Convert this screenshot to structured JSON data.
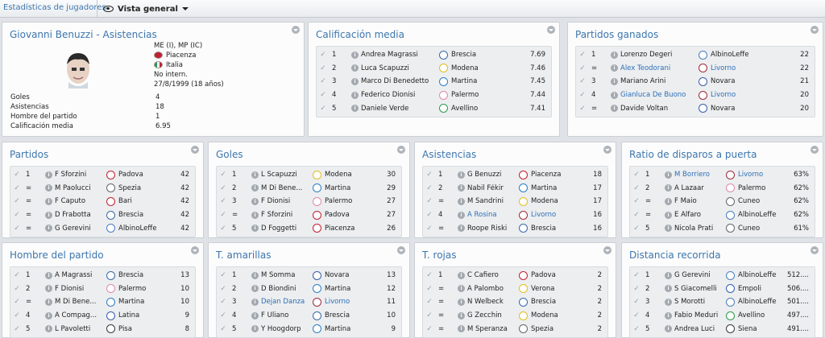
{
  "header": {
    "title": "Estadísticas de jugadores",
    "view_label": "Vista general"
  },
  "profile": {
    "title": "Giovanni Benuzzi - Asistencias",
    "position": "ME (I), MP (IC)",
    "club": "Piacenza",
    "nation": "Italia",
    "international": "No intern.",
    "dob": "27/8/1999 (18 años)",
    "stats": [
      {
        "label": "Goles",
        "value": "4"
      },
      {
        "label": "Asistencias",
        "value": "18"
      },
      {
        "label": "Hombre del partido",
        "value": "1"
      },
      {
        "label": "Calificación media",
        "value": "6.95"
      }
    ]
  },
  "panels": [
    {
      "title": "Calificación media",
      "rows": [
        {
          "pos": "1",
          "name": "Andrea Magrassi",
          "team": "Brescia",
          "value": "7.69",
          "badge": "#3a6aa8"
        },
        {
          "pos": "2",
          "name": "Luca Scapuzzi",
          "team": "Modena",
          "value": "7.46",
          "badge": "#e0c020"
        },
        {
          "pos": "3",
          "name": "Marco Di Benedetto",
          "team": "Martina",
          "value": "7.45",
          "badge": "#2f7dc4"
        },
        {
          "pos": "4",
          "name": "Federico Dionisi",
          "team": "Palermo",
          "value": "7.44",
          "badge": "#e08aa8"
        },
        {
          "pos": "5",
          "name": "Daniele Verde",
          "team": "Avellino",
          "value": "7.41",
          "badge": "#2e9a4e"
        }
      ]
    },
    {
      "title": "Partidos ganados",
      "rows": [
        {
          "pos": "1",
          "name": "Lorenzo Degeri",
          "team": "AlbinoLeffe",
          "value": "22",
          "badge": "#4a7ec0"
        },
        {
          "pos": "=",
          "name": "Alex Teodorani",
          "team": "Livorno",
          "value": "22",
          "badge": "#a02a3a",
          "link": true
        },
        {
          "pos": "3",
          "name": "Mariano Arini",
          "team": "Novara",
          "value": "21",
          "badge": "#3a5ea8"
        },
        {
          "pos": "4",
          "name": "Gianluca De Buono",
          "team": "Livorno",
          "value": "20",
          "badge": "#a02a3a",
          "link": true
        },
        {
          "pos": "=",
          "name": "Davide Voltan",
          "team": "Novara",
          "value": "20",
          "badge": "#3a5ea8"
        }
      ]
    },
    {
      "title": "Partidos",
      "rows": [
        {
          "pos": "1",
          "name": "F Sforzini",
          "team": "Padova",
          "value": "42",
          "badge": "#c02030"
        },
        {
          "pos": "=",
          "name": "M Paolucci",
          "team": "Spezia",
          "value": "42",
          "badge": "#666666"
        },
        {
          "pos": "=",
          "name": "F Caputo",
          "team": "Bari",
          "value": "42",
          "badge": "#c02030"
        },
        {
          "pos": "=",
          "name": "D Frabotta",
          "team": "Brescia",
          "value": "42",
          "badge": "#3a6aa8"
        },
        {
          "pos": "=",
          "name": "G Gerevini",
          "team": "AlbinoLeffe",
          "value": "42",
          "badge": "#4a7ec0"
        }
      ]
    },
    {
      "title": "Goles",
      "rows": [
        {
          "pos": "1",
          "name": "L Scapuzzi",
          "team": "Modena",
          "value": "30",
          "badge": "#e0c020"
        },
        {
          "pos": "2",
          "name": "M Di Bene...",
          "team": "Martina",
          "value": "29",
          "badge": "#2f7dc4"
        },
        {
          "pos": "3",
          "name": "F Dionisi",
          "team": "Palermo",
          "value": "27",
          "badge": "#e08aa8"
        },
        {
          "pos": "=",
          "name": "F Sforzini",
          "team": "Padova",
          "value": "27",
          "badge": "#c02030"
        },
        {
          "pos": "5",
          "name": "D Foggetti",
          "team": "Piacenza",
          "value": "26",
          "badge": "#c02030"
        }
      ]
    },
    {
      "title": "Asistencias",
      "rows": [
        {
          "pos": "1",
          "name": "G Benuzzi",
          "team": "Piacenza",
          "value": "18",
          "badge": "#c02030"
        },
        {
          "pos": "2",
          "name": "Nabil Fékir",
          "team": "Martina",
          "value": "17",
          "badge": "#2f7dc4"
        },
        {
          "pos": "=",
          "name": "M Sandrini",
          "team": "Modena",
          "value": "17",
          "badge": "#e0c020"
        },
        {
          "pos": "4",
          "name": "A Rosina",
          "team": "Livorno",
          "value": "16",
          "badge": "#a02a3a",
          "link": true
        },
        {
          "pos": "=",
          "name": "Roope Riski",
          "team": "Brescia",
          "value": "16",
          "badge": "#3a6aa8"
        }
      ]
    },
    {
      "title": "Ratio de disparos a puerta",
      "rows": [
        {
          "pos": "1",
          "name": "M Borriero",
          "team": "Livorno",
          "value": "63%",
          "badge": "#a02a3a",
          "link": true
        },
        {
          "pos": "2",
          "name": "A Lazaar",
          "team": "Palermo",
          "value": "62%",
          "badge": "#e08aa8"
        },
        {
          "pos": "=",
          "name": "F Maio",
          "team": "Cuneo",
          "value": "62%",
          "badge": "#666666"
        },
        {
          "pos": "=",
          "name": "E Alfaro",
          "team": "AlbinoLeffe",
          "value": "62%",
          "badge": "#4a7ec0"
        },
        {
          "pos": "5",
          "name": "Nicola Prati",
          "team": "Cuneo",
          "value": "61%",
          "badge": "#666666"
        }
      ]
    },
    {
      "title": "Hombre del partido",
      "rows": [
        {
          "pos": "1",
          "name": "A Magrassi",
          "team": "Brescia",
          "value": "13",
          "badge": "#3a6aa8"
        },
        {
          "pos": "2",
          "name": "F Dionisi",
          "team": "Palermo",
          "value": "10",
          "badge": "#e08aa8"
        },
        {
          "pos": "=",
          "name": "M Di Bene...",
          "team": "Martina",
          "value": "10",
          "badge": "#2f7dc4"
        },
        {
          "pos": "4",
          "name": "A Compag...",
          "team": "Latina",
          "value": "9",
          "badge": "#3a5ea8"
        },
        {
          "pos": "5",
          "name": "L Pavoletti",
          "team": "Pisa",
          "value": "8",
          "badge": "#3a3a3a"
        }
      ]
    },
    {
      "title": "T. amarillas",
      "rows": [
        {
          "pos": "1",
          "name": "M Somma",
          "team": "Novara",
          "value": "13",
          "badge": "#3a5ea8"
        },
        {
          "pos": "2",
          "name": "D Biondini",
          "team": "Martina",
          "value": "12",
          "badge": "#2f7dc4"
        },
        {
          "pos": "3",
          "name": "Dejan Danza",
          "team": "Livorno",
          "value": "11",
          "badge": "#a02a3a",
          "link": true
        },
        {
          "pos": "4",
          "name": "F Uliano",
          "team": "Brescia",
          "value": "10",
          "badge": "#3a6aa8"
        },
        {
          "pos": "5",
          "name": "Y Hoogdorp",
          "team": "Martina",
          "value": "9",
          "badge": "#2f7dc4"
        }
      ]
    },
    {
      "title": "T. rojas",
      "rows": [
        {
          "pos": "1",
          "name": "C Cafiero",
          "team": "Padova",
          "value": "2",
          "badge": "#c02030"
        },
        {
          "pos": "=",
          "name": "A Palombo",
          "team": "Verona",
          "value": "2",
          "badge": "#e0c020"
        },
        {
          "pos": "=",
          "name": "N Welbeck",
          "team": "Brescia",
          "value": "2",
          "badge": "#3a6aa8"
        },
        {
          "pos": "=",
          "name": "G Zecchin",
          "team": "Modena",
          "value": "2",
          "badge": "#e0c020"
        },
        {
          "pos": "=",
          "name": "M Speranza",
          "team": "Spezia",
          "value": "2",
          "badge": "#666666"
        }
      ]
    },
    {
      "title": "Distancia recorrida",
      "rows": [
        {
          "pos": "1",
          "name": "G Gerevini",
          "team": "AlbinoLeffe",
          "value": "512....",
          "badge": "#4a7ec0"
        },
        {
          "pos": "2",
          "name": "S Giacomelli",
          "team": "Empoli",
          "value": "506....",
          "badge": "#2f5fb0"
        },
        {
          "pos": "3",
          "name": "S Morotti",
          "team": "AlbinoLeffe",
          "value": "501....",
          "badge": "#4a7ec0"
        },
        {
          "pos": "4",
          "name": "Fabio Meduri",
          "team": "Avellino",
          "value": "497....",
          "badge": "#2e9a4e"
        },
        {
          "pos": "5",
          "name": "Andrea Luci",
          "team": "Siena",
          "value": "491....",
          "badge": "#3a3a3a"
        }
      ]
    }
  ]
}
